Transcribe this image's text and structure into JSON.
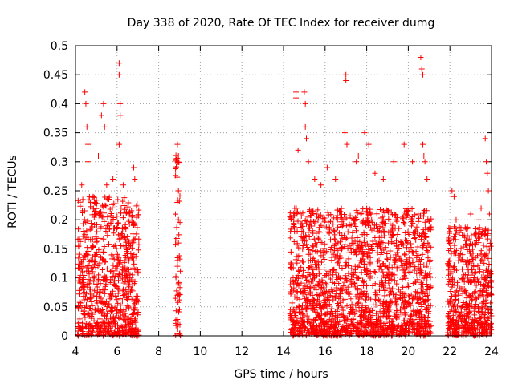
{
  "chart_data": {
    "type": "scatter",
    "title": "Day 338 of 2020, Rate Of TEC Index for receiver dumg",
    "xlabel": "GPS time / hours",
    "ylabel": "ROTI / TECUs",
    "xlim": [
      4,
      24
    ],
    "ylim": [
      0,
      0.5
    ],
    "xticks": [
      4,
      6,
      8,
      10,
      12,
      14,
      16,
      18,
      20,
      22,
      24
    ],
    "yticks": [
      0,
      0.05,
      0.1,
      0.15,
      0.2,
      0.25,
      0.3,
      0.35,
      0.4,
      0.45,
      0.5
    ],
    "grid": true,
    "marker": "plus",
    "color": "#ff0000",
    "segments": [
      {
        "x_start": 4.1,
        "x_end": 7.05,
        "y_typical_max": 0.24,
        "y_peaks": [
          [
            4.3,
            0.26
          ],
          [
            4.45,
            0.42
          ],
          [
            4.5,
            0.4
          ],
          [
            4.55,
            0.36
          ],
          [
            4.6,
            0.33
          ],
          [
            4.6,
            0.3
          ],
          [
            4.85,
            0.24
          ],
          [
            5.1,
            0.31
          ],
          [
            5.25,
            0.38
          ],
          [
            5.35,
            0.4
          ],
          [
            5.4,
            0.36
          ],
          [
            5.5,
            0.26
          ],
          [
            5.8,
            0.27
          ],
          [
            6.1,
            0.47
          ],
          [
            6.1,
            0.45
          ],
          [
            6.15,
            0.4
          ],
          [
            6.15,
            0.38
          ],
          [
            6.1,
            0.33
          ],
          [
            6.3,
            0.26
          ],
          [
            6.8,
            0.29
          ],
          [
            6.85,
            0.27
          ]
        ]
      },
      {
        "x_start": 8.8,
        "x_end": 9.05,
        "y_typical_max": 0.32,
        "y_peaks": [
          [
            8.9,
            0.33
          ],
          [
            8.95,
            0.31
          ],
          [
            8.95,
            0.25
          ],
          [
            8.95,
            0.2
          ],
          [
            8.95,
            0.16
          ],
          [
            8.9,
            0.13
          ],
          [
            8.9,
            0.12
          ],
          [
            8.95,
            0.09
          ],
          [
            8.9,
            0.07
          ]
        ]
      },
      {
        "x_start": 14.3,
        "x_end": 21.1,
        "y_typical_max": 0.22,
        "y_peaks": [
          [
            14.6,
            0.42
          ],
          [
            14.6,
            0.41
          ],
          [
            14.7,
            0.32
          ],
          [
            15.0,
            0.42
          ],
          [
            15.05,
            0.4
          ],
          [
            15.05,
            0.36
          ],
          [
            15.1,
            0.34
          ],
          [
            15.2,
            0.3
          ],
          [
            15.5,
            0.27
          ],
          [
            15.8,
            0.26
          ],
          [
            16.1,
            0.29
          ],
          [
            16.5,
            0.27
          ],
          [
            17.0,
            0.45
          ],
          [
            17.0,
            0.44
          ],
          [
            16.95,
            0.35
          ],
          [
            17.05,
            0.33
          ],
          [
            17.5,
            0.3
          ],
          [
            17.6,
            0.31
          ],
          [
            17.9,
            0.35
          ],
          [
            18.1,
            0.33
          ],
          [
            18.4,
            0.28
          ],
          [
            18.8,
            0.27
          ],
          [
            19.3,
            0.3
          ],
          [
            19.8,
            0.33
          ],
          [
            20.2,
            0.3
          ],
          [
            20.6,
            0.48
          ],
          [
            20.65,
            0.46
          ],
          [
            20.7,
            0.45
          ],
          [
            20.7,
            0.33
          ],
          [
            20.75,
            0.31
          ],
          [
            20.8,
            0.3
          ],
          [
            20.9,
            0.27
          ]
        ]
      },
      {
        "x_start": 21.9,
        "x_end": 24.0,
        "y_typical_max": 0.19,
        "y_peaks": [
          [
            22.1,
            0.25
          ],
          [
            22.2,
            0.24
          ],
          [
            22.3,
            0.2
          ],
          [
            23.0,
            0.21
          ],
          [
            23.4,
            0.2
          ],
          [
            23.5,
            0.22
          ],
          [
            23.7,
            0.34
          ],
          [
            23.75,
            0.3
          ],
          [
            23.8,
            0.28
          ],
          [
            23.85,
            0.25
          ],
          [
            23.9,
            0.21
          ]
        ]
      }
    ]
  }
}
